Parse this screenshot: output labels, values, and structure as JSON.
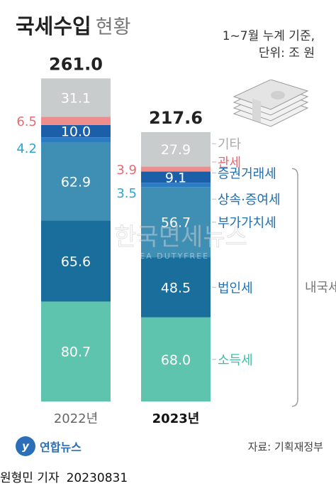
{
  "header": {
    "title_bold": "국세수입",
    "title_light": "현황",
    "note_line1": "1~7월 누계 기준,",
    "note_line2": "단위: 조 원"
  },
  "chart_data": {
    "type": "bar",
    "stacked": true,
    "categories": [
      "2022년",
      "2023년"
    ],
    "totals": [
      261.0,
      217.6
    ],
    "series": [
      {
        "name": "소득세",
        "values": [
          80.7,
          68.0
        ],
        "color": "#5ec4ae"
      },
      {
        "name": "법인세",
        "values": [
          65.6,
          48.5
        ],
        "color": "#1a6e9c"
      },
      {
        "name": "부가가치세",
        "values": [
          62.9,
          56.7
        ],
        "color": "#3f8fb5"
      },
      {
        "name": "상속·증여세",
        "values": [
          4.2,
          3.5
        ],
        "color": "#2c7cc4"
      },
      {
        "name": "증권거래세",
        "values": [
          10.0,
          9.1
        ],
        "color": "#1b5fa8"
      },
      {
        "name": "관세",
        "values": [
          6.5,
          3.9
        ],
        "color": "#ef8c8c"
      },
      {
        "name": "기타",
        "values": [
          31.1,
          27.9
        ],
        "color": "#c9cccd"
      }
    ],
    "bracket_label": "내국세",
    "legend_placement": "right"
  },
  "colors": {
    "value_text": "#ffffff",
    "gwanse_label": "#e46b72",
    "sangsok_label": "#2aa5d6",
    "legend_teal": "#3fbea5",
    "legend_blue": "#1f6fb4",
    "legend_gray": "#aaaaaa"
  },
  "watermark": {
    "text_main": "한국면세뉴스",
    "text_sub": "KOREA DUTYFREE NEWS"
  },
  "footer": {
    "logo_name": "연합뉴스",
    "source": "자료: 기획재정부",
    "reporter": "원형민 기자",
    "date": "20230831"
  }
}
